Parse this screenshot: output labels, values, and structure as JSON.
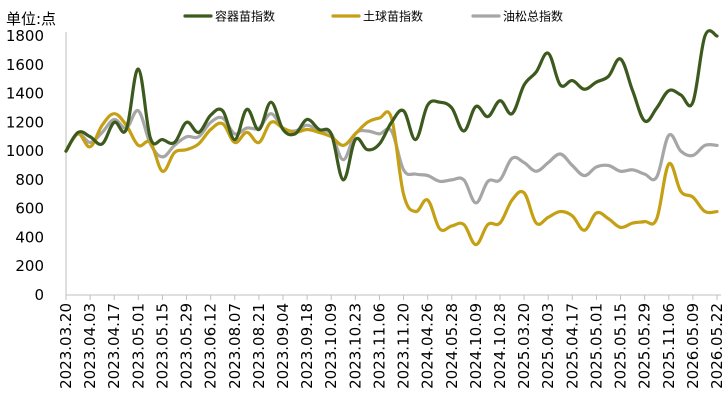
{
  "chart_data": {
    "type": "line",
    "unit_label": "单位:点",
    "ylim": [
      0,
      1800
    ],
    "y_ticks": [
      0,
      200,
      400,
      600,
      800,
      1000,
      1200,
      1400,
      1600,
      1800
    ],
    "x_tick_labels": [
      "2023.03.20",
      "2023.04.03",
      "2023.04.17",
      "2023.05.01",
      "2023.05.15",
      "2023.05.29",
      "2023.06.12",
      "2023.08.07",
      "2023.08.21",
      "2023.09.04",
      "2023.09.18",
      "2023.10.09",
      "2023.10.23",
      "2023.11.06",
      "2023.11.20",
      "2024.04.26",
      "2024.05.28",
      "2024.10.09",
      "2024.10.28",
      "2025.03.20",
      "2025.04.03",
      "2025.04.17",
      "2025.05.01",
      "2025.05.15",
      "2025.05.29",
      "2025.11.06",
      "2026.05.09",
      "2026.05.22"
    ],
    "grid": false,
    "legend_position": "top",
    "series": [
      {
        "name": "容器苗指数",
        "color": "#3d5a1e",
        "x": [
          0,
          0.5,
          1,
          1.5,
          2,
          2.5,
          3,
          3.5,
          4,
          4.5,
          5,
          5.5,
          6,
          6.5,
          7,
          7.5,
          8,
          8.5,
          9,
          9.5,
          10,
          10.5,
          11,
          11.5,
          12,
          12.5,
          13,
          13.5,
          14,
          14.5,
          15,
          15.5,
          16,
          16.5,
          17,
          17.5,
          18,
          18.5,
          19,
          19.5,
          20,
          20.5,
          21,
          21.5,
          22,
          22.5,
          23,
          23.5,
          24,
          24.5,
          25,
          25.5,
          26,
          26.5,
          27
        ],
        "values": [
          1000,
          1130,
          1100,
          1050,
          1200,
          1150,
          1570,
          1090,
          1080,
          1060,
          1200,
          1130,
          1250,
          1280,
          1080,
          1290,
          1150,
          1340,
          1150,
          1120,
          1220,
          1150,
          1120,
          800,
          1080,
          1010,
          1050,
          1200,
          1280,
          1080,
          1320,
          1340,
          1300,
          1140,
          1310,
          1240,
          1350,
          1260,
          1460,
          1550,
          1680,
          1460,
          1490,
          1430,
          1480,
          1520,
          1640,
          1420,
          1210,
          1300,
          1420,
          1390,
          1340,
          1800,
          1800
        ]
      },
      {
        "name": "土球苗指数",
        "color": "#c5a014",
        "x": [
          0,
          0.5,
          1,
          1.5,
          2,
          2.5,
          3,
          3.5,
          4,
          4.5,
          5,
          5.5,
          6,
          6.5,
          7,
          7.5,
          8,
          8.5,
          9,
          9.5,
          10,
          10.5,
          11,
          11.5,
          12,
          12.5,
          13,
          13.5,
          14,
          14.5,
          15,
          15.5,
          16,
          16.5,
          17,
          17.5,
          18,
          18.5,
          19,
          19.5,
          20,
          20.5,
          21,
          21.5,
          22,
          22.5,
          23,
          23.5,
          24,
          24.5,
          25,
          25.5,
          26,
          26.5,
          27
        ],
        "values": [
          1000,
          1120,
          1030,
          1180,
          1260,
          1180,
          1040,
          1060,
          860,
          990,
          1010,
          1050,
          1150,
          1190,
          1060,
          1130,
          1060,
          1200,
          1160,
          1130,
          1150,
          1130,
          1100,
          1040,
          1120,
          1200,
          1230,
          1230,
          700,
          580,
          660,
          460,
          480,
          490,
          350,
          490,
          500,
          660,
          710,
          500,
          540,
          580,
          550,
          450,
          570,
          530,
          470,
          500,
          510,
          530,
          910,
          720,
          680,
          580,
          580
        ]
      },
      {
        "name": "油松总指数",
        "color": "#a6a6a6",
        "x": [
          0,
          0.5,
          1,
          1.5,
          2,
          2.5,
          3,
          3.5,
          4,
          4.5,
          5,
          5.5,
          6,
          6.5,
          7,
          7.5,
          8,
          8.5,
          9,
          9.5,
          10,
          10.5,
          11,
          11.5,
          12,
          12.5,
          13,
          13.5,
          14,
          14.5,
          15,
          15.5,
          16,
          16.5,
          17,
          17.5,
          18,
          18.5,
          19,
          19.5,
          20,
          20.5,
          21,
          21.5,
          22,
          22.5,
          23,
          23.5,
          24,
          24.5,
          25,
          25.5,
          26,
          26.5,
          27
        ],
        "values": [
          1000,
          1120,
          1060,
          1130,
          1220,
          1160,
          1280,
          1050,
          960,
          1040,
          1100,
          1100,
          1200,
          1230,
          1120,
          1160,
          1160,
          1260,
          1160,
          1140,
          1180,
          1140,
          1120,
          940,
          1120,
          1140,
          1120,
          1140,
          870,
          840,
          830,
          790,
          800,
          800,
          640,
          790,
          800,
          950,
          920,
          860,
          920,
          980,
          900,
          830,
          890,
          900,
          860,
          870,
          840,
          820,
          1110,
          1000,
          970,
          1040,
          1040
        ]
      }
    ]
  }
}
